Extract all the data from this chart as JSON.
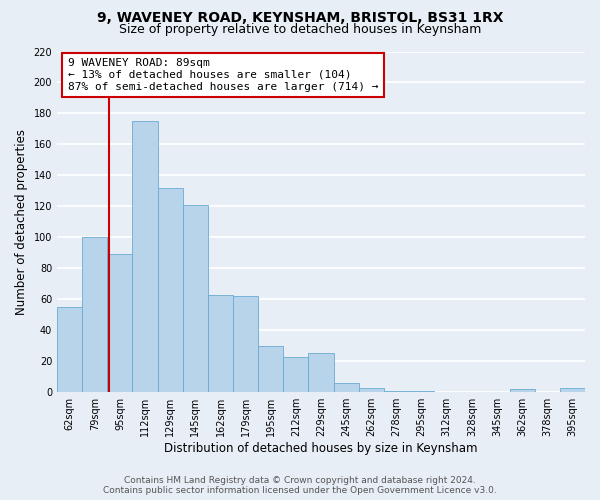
{
  "title": "9, WAVENEY ROAD, KEYNSHAM, BRISTOL, BS31 1RX",
  "subtitle": "Size of property relative to detached houses in Keynsham",
  "xlabel": "Distribution of detached houses by size in Keynsham",
  "ylabel": "Number of detached properties",
  "categories": [
    "62sqm",
    "79sqm",
    "95sqm",
    "112sqm",
    "129sqm",
    "145sqm",
    "162sqm",
    "179sqm",
    "195sqm",
    "212sqm",
    "229sqm",
    "245sqm",
    "262sqm",
    "278sqm",
    "295sqm",
    "312sqm",
    "328sqm",
    "345sqm",
    "362sqm",
    "378sqm",
    "395sqm"
  ],
  "values": [
    55,
    100,
    89,
    175,
    132,
    121,
    63,
    62,
    30,
    23,
    25,
    6,
    3,
    1,
    1,
    0,
    0,
    0,
    2,
    0,
    3
  ],
  "bar_color": "#b8d4ea",
  "bar_edge_color": "#6aaad4",
  "vline_color": "#cc0000",
  "vline_x": 1.55,
  "annotation_line1": "9 WAVENEY ROAD: 89sqm",
  "annotation_line2": "← 13% of detached houses are smaller (104)",
  "annotation_line3": "87% of semi-detached houses are larger (714) →",
  "annotation_box_color": "#ffffff",
  "annotation_box_edge_color": "#cc0000",
  "ylim": [
    0,
    220
  ],
  "yticks": [
    0,
    20,
    40,
    60,
    80,
    100,
    120,
    140,
    160,
    180,
    200,
    220
  ],
  "footer_line1": "Contains HM Land Registry data © Crown copyright and database right 2024.",
  "footer_line2": "Contains public sector information licensed under the Open Government Licence v3.0.",
  "bg_color": "#e8eef6",
  "plot_bg_color": "#e8eef6",
  "grid_color": "#ffffff",
  "title_fontsize": 10,
  "subtitle_fontsize": 9,
  "axis_label_fontsize": 8.5,
  "tick_fontsize": 7,
  "annotation_fontsize": 8,
  "footer_fontsize": 6.5
}
